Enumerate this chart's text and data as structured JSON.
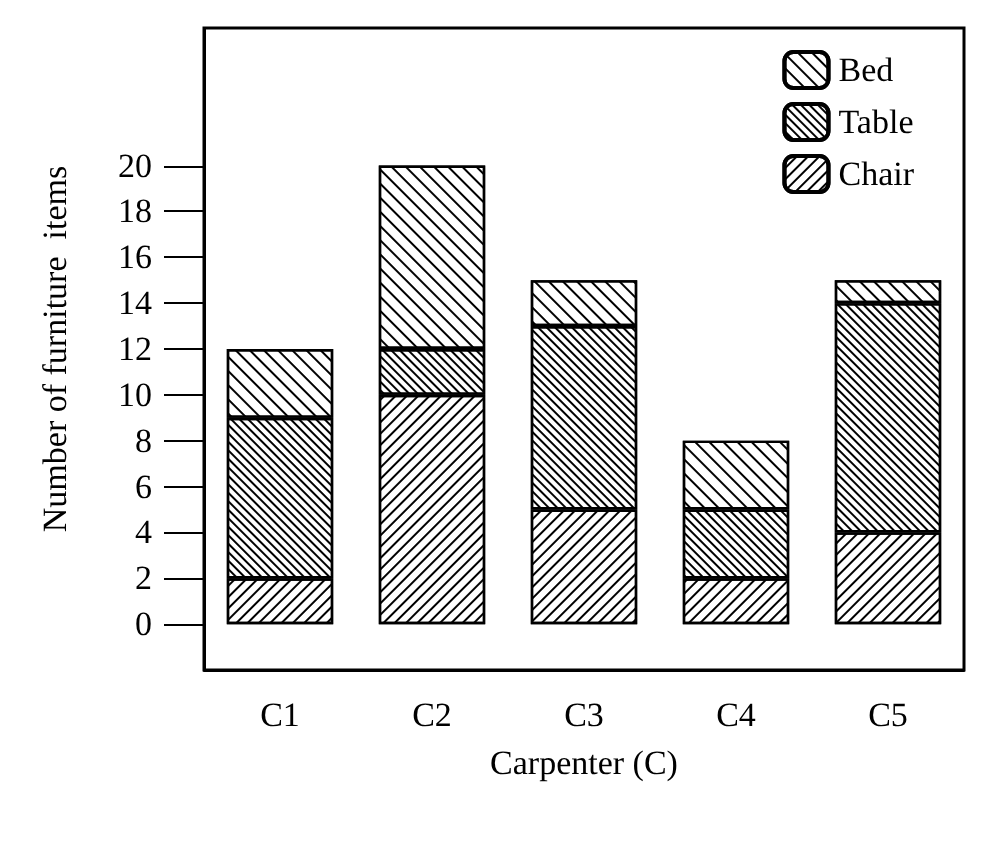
{
  "chart_data": {
    "type": "bar",
    "stacked": true,
    "xlabel": "Carpenter (C)",
    "ylabel": "Number of furniture  items",
    "categories": [
      "C1",
      "C2",
      "C3",
      "C4",
      "C5"
    ],
    "series": [
      {
        "name": "Chair",
        "color": "#ffffff",
        "values": [
          2,
          10,
          5,
          2,
          4
        ]
      },
      {
        "name": "Table",
        "color": "#ffffff",
        "values": [
          7,
          2,
          8,
          3,
          10
        ]
      },
      {
        "name": "Bed",
        "color": "#ffffff",
        "values": [
          3,
          8,
          2,
          3,
          1
        ]
      }
    ],
    "ylim": [
      -2,
      26
    ],
    "yticks": [
      0,
      2,
      4,
      6,
      8,
      10,
      12,
      14,
      16,
      18,
      20
    ],
    "grid": false,
    "legend": "top right"
  }
}
